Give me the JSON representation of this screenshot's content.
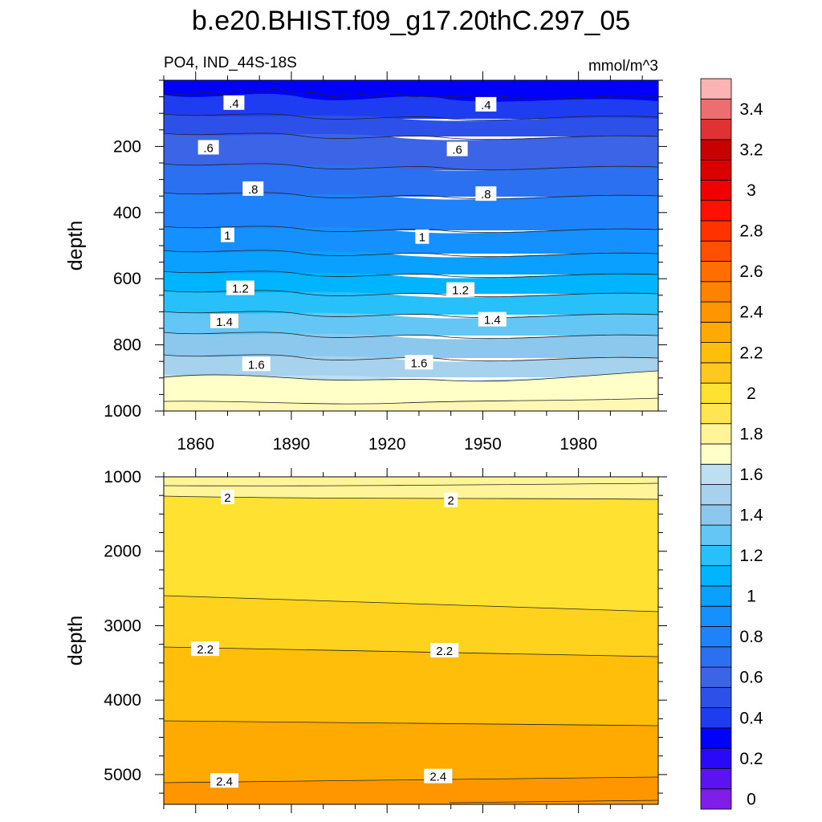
{
  "chart_data": {
    "type": "contour",
    "title": "b.e20.BHIST.f09_g17.20thC.297_05",
    "subtitle_left": "PO4, IND_44S-18S",
    "subtitle_right": "mmol/m^3",
    "x_ticks": [
      "1860",
      "1890",
      "1920",
      "1950",
      "1980"
    ],
    "x_tick_values": [
      1860,
      1890,
      1920,
      1950,
      1980
    ],
    "xlim": [
      1850,
      2005
    ],
    "panels": [
      {
        "name": "upper",
        "ylabel": "depth",
        "ylim": [
          0,
          1000
        ],
        "y_ticks": [
          "200",
          "400",
          "600",
          "800",
          "1000"
        ],
        "y_tick_values": [
          200,
          400,
          600,
          800,
          1000
        ],
        "contour_labels": [
          {
            "text": ".4",
            "year": 1872,
            "depth": 70
          },
          {
            "text": ".4",
            "year": 1951,
            "depth": 75
          },
          {
            "text": ".6",
            "year": 1864,
            "depth": 205
          },
          {
            "text": ".6",
            "year": 1942,
            "depth": 210
          },
          {
            "text": ".8",
            "year": 1878,
            "depth": 330
          },
          {
            "text": ".8",
            "year": 1951,
            "depth": 345
          },
          {
            "text": "1",
            "year": 1870,
            "depth": 470
          },
          {
            "text": "1",
            "year": 1931,
            "depth": 475
          },
          {
            "text": "1.2",
            "year": 1874,
            "depth": 630
          },
          {
            "text": "1.2",
            "year": 1943,
            "depth": 635
          },
          {
            "text": "1.4",
            "year": 1869,
            "depth": 730
          },
          {
            "text": "1.4",
            "year": 1953,
            "depth": 725
          },
          {
            "text": "1.6",
            "year": 1879,
            "depth": 860
          },
          {
            "text": "1.6",
            "year": 1930,
            "depth": 855
          }
        ]
      },
      {
        "name": "lower",
        "ylabel": "depth",
        "ylim": [
          1000,
          5400
        ],
        "y_ticks": [
          "1000",
          "2000",
          "3000",
          "4000",
          "5000"
        ],
        "y_tick_values": [
          1000,
          2000,
          3000,
          4000,
          5000
        ],
        "contour_labels": [
          {
            "text": "2",
            "year": 1870,
            "depth": 1280
          },
          {
            "text": "2",
            "year": 1940,
            "depth": 1320
          },
          {
            "text": "2.2",
            "year": 1863,
            "depth": 3320
          },
          {
            "text": "2.2",
            "year": 1938,
            "depth": 3340
          },
          {
            "text": "2.4",
            "year": 1869,
            "depth": 5090
          },
          {
            "text": "2.4",
            "year": 1936,
            "depth": 5030
          }
        ]
      }
    ],
    "colorbar": {
      "labels": [
        "0",
        "0.2",
        "0.4",
        "0.6",
        "0.8",
        "1",
        "1.2",
        "1.4",
        "1.6",
        "1.8",
        "2",
        "2.2",
        "2.4",
        "2.6",
        "2.8",
        "3",
        "3.2",
        "3.4"
      ],
      "label_values": [
        0,
        0.2,
        0.4,
        0.6,
        0.8,
        1,
        1.2,
        1.4,
        1.6,
        1.8,
        2,
        2.2,
        2.4,
        2.6,
        2.8,
        3,
        3.2,
        3.4
      ],
      "levels_per_label": 2,
      "colors": [
        "#7e1ee6",
        "#5a14f0",
        "#2a08f8",
        "#0000ff",
        "#1e3cf0",
        "#2c50e8",
        "#3c64e6",
        "#2a70f0",
        "#1e82fa",
        "#1490ff",
        "#0aa0ff",
        "#00b4ff",
        "#28c0fa",
        "#64c6f4",
        "#8cc8ee",
        "#a6d2ee",
        "#bce0f2",
        "#ffffc8",
        "#fff598",
        "#ffe650",
        "#ffe132",
        "#ffc81e",
        "#ffbe0a",
        "#ffaa00",
        "#ff9600",
        "#ff8200",
        "#ff6e00",
        "#ff5000",
        "#ff3200",
        "#ff1000",
        "#f00000",
        "#d80000",
        "#c80000",
        "#e03232",
        "#ec6e6e",
        "#fab4b4"
      ]
    }
  }
}
